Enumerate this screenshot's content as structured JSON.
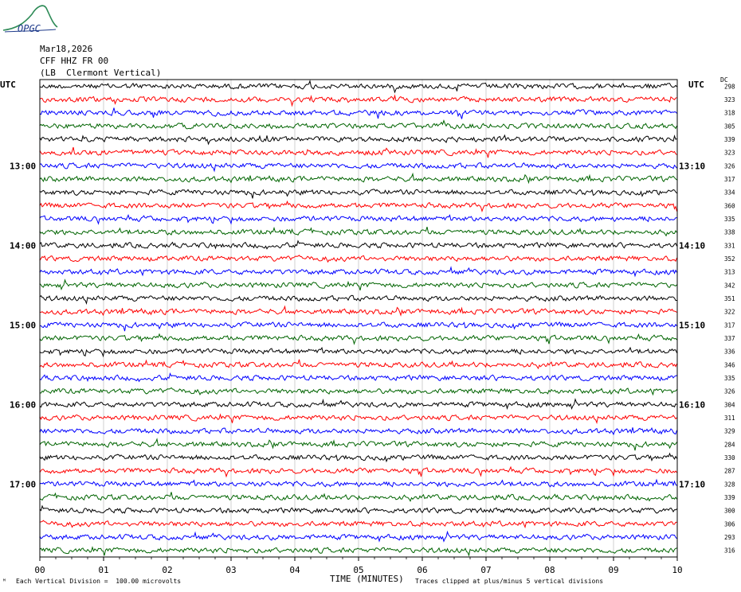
{
  "logo": {
    "text": "OPGC"
  },
  "header": {
    "date": "Mar18,2026",
    "channel": "CFF HHZ FR 00",
    "station": "(LB  Clermont Vertical)"
  },
  "left_axis_label": "UTC",
  "right_axis_label": "UTC",
  "dc_label": "DC",
  "footer": {
    "scale_note": "Each Vertical Division =  100.00 microvolts",
    "clip_note": "Traces clipped at plus/minus 5 vertical divisions"
  },
  "chart_data": {
    "type": "line",
    "title": "",
    "xlabel": "TIME (MINUTES)",
    "ylabel": "UTC",
    "x_ticks": [
      "00",
      "01",
      "02",
      "03",
      "04",
      "05",
      "06",
      "07",
      "08",
      "09",
      "10"
    ],
    "xlim": [
      0,
      10
    ],
    "grid": true,
    "trace_count": 36,
    "trace_colors": [
      "#000000",
      "#ff0000",
      "#0000ff",
      "#006400"
    ],
    "left_time_labels": [
      {
        "trace": 6,
        "label": "13:00"
      },
      {
        "trace": 12,
        "label": "14:00"
      },
      {
        "trace": 18,
        "label": "15:00"
      },
      {
        "trace": 24,
        "label": "16:00"
      },
      {
        "trace": 30,
        "label": "17:00"
      }
    ],
    "right_time_labels": [
      {
        "trace": 6,
        "label": "13:10"
      },
      {
        "trace": 12,
        "label": "14:10"
      },
      {
        "trace": 18,
        "label": "15:10"
      },
      {
        "trace": 24,
        "label": "16:10"
      },
      {
        "trace": 30,
        "label": "17:10"
      }
    ],
    "dc_offsets": [
      298,
      323,
      318,
      305,
      339,
      323,
      326,
      317,
      334,
      360,
      335,
      338,
      331,
      352,
      313,
      342,
      351,
      322,
      317,
      337,
      336,
      346,
      335,
      326,
      304,
      311,
      329,
      284,
      330,
      287,
      328,
      339,
      300,
      306,
      293,
      316
    ]
  }
}
